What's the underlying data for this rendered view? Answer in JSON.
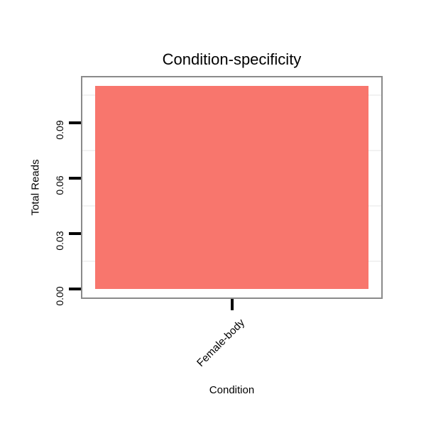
{
  "chart_data": {
    "type": "bar",
    "title": "Condition-specificity",
    "xlabel": "Condition",
    "ylabel": "Total Reads",
    "categories": [
      "Female-body"
    ],
    "values": [
      0.11
    ],
    "bar_color": "#F8766D",
    "ylim": [
      -0.0055,
      0.1155
    ],
    "yticks": [
      0,
      0.03,
      0.06,
      0.09
    ],
    "ytick_labels": [
      "0.00",
      "0.03",
      "0.06",
      "0.09"
    ],
    "minor_gridlines": [
      0.015,
      0.045,
      0.075,
      0.105
    ],
    "grid": "horizontal minor gridlines only",
    "legend": "none",
    "x_tick_label_angle_deg": 45,
    "y_tick_label_angle_deg": 90,
    "panel_background": "#ffffff",
    "panel_border_color": "#8a8a8a",
    "minor_grid_color": "#f2f2f2",
    "tick_color": "#000000",
    "text_color": "#000000"
  }
}
